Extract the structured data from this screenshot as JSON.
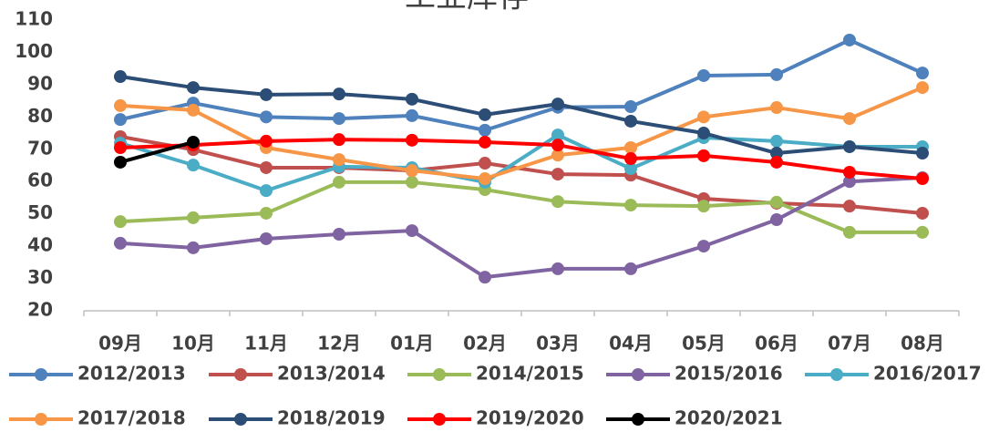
{
  "chart_data": {
    "type": "line",
    "title": "工业库存",
    "categories": [
      "09月",
      "10月",
      "11月",
      "12月",
      "01月",
      "02月",
      "03月",
      "04月",
      "05月",
      "06月",
      "07月",
      "08月"
    ],
    "ylim": [
      20,
      110
    ],
    "yticks": [
      20,
      30,
      40,
      50,
      60,
      70,
      80,
      90,
      100,
      110
    ],
    "series": [
      {
        "name": "2012/2013",
        "color": "#4f81bd",
        "values": [
          79.2,
          84.3,
          80,
          79.5,
          80.4,
          75.9,
          83,
          83.2,
          92.8,
          93.1,
          103.8,
          93.6
        ]
      },
      {
        "name": "2013/2014",
        "color": "#c0504d",
        "values": [
          73.9,
          69.9,
          64.3,
          64.3,
          63.4,
          65.7,
          62.3,
          62,
          54.7,
          53.3,
          52.4,
          50.2
        ]
      },
      {
        "name": "2014/2015",
        "color": "#9bbb59",
        "values": [
          47.6,
          48.8,
          50.2,
          59.8,
          59.8,
          57.5,
          53.8,
          52.7,
          52.4,
          53.6,
          44.3,
          44.3
        ]
      },
      {
        "name": "2015/2016",
        "color": "#8064a2",
        "values": [
          40.9,
          39.5,
          42.3,
          43.7,
          44.8,
          30.4,
          33,
          33,
          40,
          48.2,
          60,
          61.2
        ]
      },
      {
        "name": "2016/2017",
        "color": "#4bacc6",
        "values": [
          71.9,
          65.1,
          57.2,
          64.6,
          64.3,
          59.8,
          74.4,
          64,
          73.6,
          72.5,
          70.8,
          70.8
        ]
      },
      {
        "name": "2017/2018",
        "color": "#f79646",
        "values": [
          83.5,
          82.1,
          70.5,
          66.8,
          63.4,
          60.9,
          68.2,
          70.5,
          80,
          82.9,
          79.5,
          89.1
        ]
      },
      {
        "name": "2018/2019",
        "color": "#2c4d75",
        "values": [
          92.5,
          89.1,
          86.9,
          87.1,
          85.5,
          80.7,
          84,
          78.7,
          75,
          68.8,
          70.8,
          68.8
        ]
      },
      {
        "name": "2019/2020",
        "color": "#ff0000",
        "values": [
          70.5,
          71.3,
          72.5,
          73,
          72.8,
          72.2,
          71.3,
          67.1,
          68,
          66,
          62.9,
          60.9
        ]
      },
      {
        "name": "2020/2021",
        "color": "#000000",
        "values": [
          66,
          72.2,
          null,
          null,
          null,
          null,
          null,
          null,
          null,
          null,
          null,
          null
        ]
      }
    ]
  }
}
